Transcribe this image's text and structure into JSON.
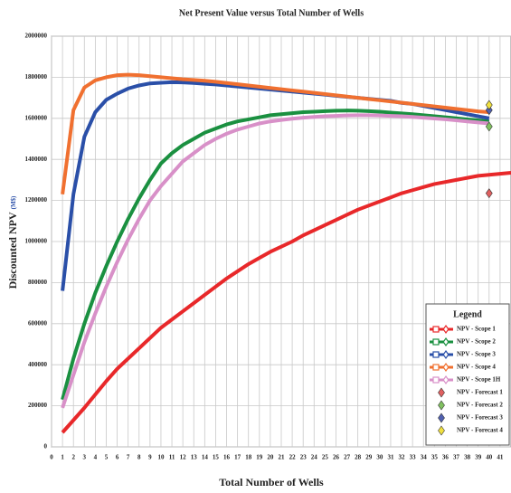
{
  "chart_data": {
    "type": "line",
    "title": "Net Present Value versus Total Number of Wells",
    "x_label": "Total Number of Wells",
    "y_label": "Discounted NPV",
    "y_label_unit": "(M$)",
    "x": [
      1,
      2,
      3,
      4,
      5,
      6,
      7,
      8,
      9,
      10,
      11,
      12,
      13,
      14,
      15,
      16,
      17,
      18,
      19,
      20,
      21,
      22,
      23,
      24,
      25,
      26,
      27,
      28,
      29,
      30,
      31,
      32,
      33,
      34,
      35,
      36,
      37,
      38,
      39,
      40,
      41,
      42
    ],
    "xlim": [
      0,
      42
    ],
    "xticks": [
      0,
      1,
      2,
      3,
      4,
      5,
      6,
      7,
      8,
      9,
      10,
      11,
      12,
      13,
      14,
      15,
      16,
      17,
      18,
      19,
      20,
      21,
      22,
      23,
      24,
      25,
      26,
      27,
      28,
      29,
      30,
      31,
      32,
      33,
      34,
      35,
      36,
      37,
      38,
      39,
      40,
      41
    ],
    "ylim": [
      0,
      2000000
    ],
    "yticks": [
      0,
      200000,
      400000,
      600000,
      800000,
      1000000,
      1200000,
      1400000,
      1600000,
      1800000,
      2000000
    ],
    "grid": true,
    "legend_title": "Legend",
    "legend_position": "lower right",
    "series": [
      {
        "name": "NPV - Scope 1",
        "color": "#e8282a",
        "values": [
          70000,
          130000,
          190000,
          255000,
          320000,
          380000,
          430000,
          480000,
          530000,
          580000,
          620000,
          660000,
          700000,
          740000,
          780000,
          820000,
          855000,
          890000,
          920000,
          950000,
          975000,
          1000000,
          1030000,
          1055000,
          1080000,
          1105000,
          1130000,
          1155000,
          1175000,
          1195000,
          1215000,
          1235000,
          1250000,
          1265000,
          1280000,
          1290000,
          1300000,
          1310000,
          1320000,
          1325000,
          1330000,
          1335000
        ]
      },
      {
        "name": "NPV - Scope 2",
        "color": "#1a9040",
        "values": [
          230000,
          430000,
          600000,
          750000,
          880000,
          1000000,
          1110000,
          1210000,
          1300000,
          1380000,
          1430000,
          1470000,
          1500000,
          1530000,
          1550000,
          1570000,
          1585000,
          1595000,
          1605000,
          1615000,
          1620000,
          1625000,
          1630000,
          1632000,
          1635000,
          1637000,
          1638000,
          1637000,
          1635000,
          1632000,
          1628000,
          1624000,
          1620000,
          1615000,
          1610000,
          1605000,
          1600000,
          1595000,
          1590000,
          1585000,
          null,
          null
        ]
      },
      {
        "name": "NPV - Scope 3",
        "color": "#2a4fa8",
        "values": [
          760000,
          1230000,
          1510000,
          1630000,
          1690000,
          1720000,
          1745000,
          1760000,
          1770000,
          1773000,
          1776000,
          1775000,
          1772000,
          1768000,
          1765000,
          1760000,
          1755000,
          1750000,
          1745000,
          1740000,
          1735000,
          1730000,
          1725000,
          1720000,
          1715000,
          1710000,
          1705000,
          1700000,
          1695000,
          1690000,
          1685000,
          1675000,
          1670000,
          1660000,
          1650000,
          1640000,
          1630000,
          1620000,
          1610000,
          1600000,
          null,
          null
        ]
      },
      {
        "name": "NPV - Scope 4",
        "color": "#f07030",
        "values": [
          1230000,
          1640000,
          1750000,
          1785000,
          1800000,
          1810000,
          1812000,
          1810000,
          1805000,
          1800000,
          1795000,
          1790000,
          1787000,
          1783000,
          1778000,
          1772000,
          1766000,
          1760000,
          1754000,
          1748000,
          1742000,
          1736000,
          1730000,
          1724000,
          1718000,
          1712000,
          1706000,
          1700000,
          1694000,
          1688000,
          1682000,
          1676000,
          1670000,
          1664000,
          1658000,
          1652000,
          1646000,
          1640000,
          1634000,
          1630000,
          null,
          null
        ]
      },
      {
        "name": "NPV - Scope 1H",
        "color": "#d890c8",
        "values": [
          190000,
          350000,
          510000,
          650000,
          780000,
          900000,
          1010000,
          1110000,
          1200000,
          1270000,
          1330000,
          1390000,
          1430000,
          1470000,
          1500000,
          1525000,
          1545000,
          1560000,
          1575000,
          1585000,
          1592000,
          1598000,
          1603000,
          1607000,
          1610000,
          1612000,
          1614000,
          1615000,
          1615000,
          1614000,
          1612000,
          1610000,
          1607000,
          1603000,
          1599000,
          1595000,
          1590000,
          1585000,
          1580000,
          1575000,
          null,
          null
        ]
      }
    ],
    "points": [
      {
        "name": "NPV - Forecast 1",
        "color": "#e06060",
        "x": 40,
        "y": 1235000
      },
      {
        "name": "NPV - Forecast 2",
        "color": "#80c060",
        "x": 40,
        "y": 1560000
      },
      {
        "name": "NPV - Forecast 3",
        "color": "#5060b0",
        "x": 40,
        "y": 1640000
      },
      {
        "name": "NPV - Forecast 4",
        "color": "#f0e040",
        "x": 40,
        "y": 1665000
      }
    ]
  }
}
